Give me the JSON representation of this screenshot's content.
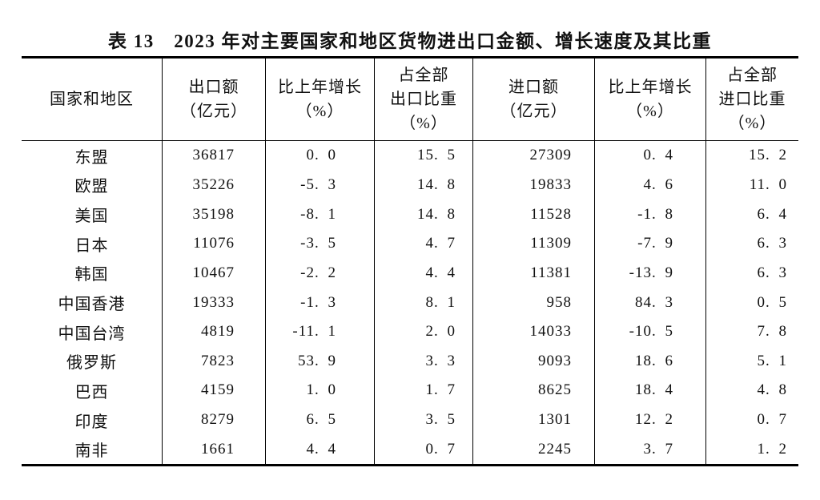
{
  "page": {
    "background_color": "#ffffff",
    "text_color": "#111111",
    "rule_color": "#000000"
  },
  "title": "表 13　2023 年对主要国家和地区货物进出口金额、增长速度及其比重",
  "table": {
    "header": [
      "国家和地区",
      "出口额\n（亿元）",
      "比上年增长\n（%）",
      "占全部\n出口比重\n（%）",
      "进口额\n（亿元）",
      "比上年增长\n（%）",
      "占全部\n进口比重\n（%）"
    ],
    "rows": [
      [
        "东盟",
        "36817",
        "0. 0",
        "15. 5",
        "27309",
        "0. 4",
        "15. 2"
      ],
      [
        "欧盟",
        "35226",
        "-5. 3",
        "14. 8",
        "19833",
        "4. 6",
        "11. 0"
      ],
      [
        "美国",
        "35198",
        "-8. 1",
        "14. 8",
        "11528",
        "-1. 8",
        "6. 4"
      ],
      [
        "日本",
        "11076",
        "-3. 5",
        "4. 7",
        "11309",
        "-7. 9",
        "6. 3"
      ],
      [
        "韩国",
        "10467",
        "-2. 2",
        "4. 4",
        "11381",
        "-13. 9",
        "6. 3"
      ],
      [
        "中国香港",
        "19333",
        "-1. 3",
        "8. 1",
        "958",
        "84. 3",
        "0. 5"
      ],
      [
        "中国台湾",
        "4819",
        "-11. 1",
        "2. 0",
        "14033",
        "-10. 5",
        "7. 8"
      ],
      [
        "俄罗斯",
        "7823",
        "53. 9",
        "3. 3",
        "9093",
        "18. 6",
        "5. 1"
      ],
      [
        "巴西",
        "4159",
        "1. 0",
        "1. 7",
        "8625",
        "18. 4",
        "4. 8"
      ],
      [
        "印度",
        "8279",
        "6. 5",
        "3. 5",
        "1301",
        "12. 2",
        "0. 7"
      ],
      [
        "南非",
        "1661",
        "4. 4",
        "0. 7",
        "2245",
        "3. 7",
        "1. 2"
      ]
    ]
  },
  "chart_data": {
    "type": "table",
    "title": "表13 2023年对主要国家和地区货物进出口金额、增长速度及其比重",
    "columns": [
      "国家和地区",
      "出口额（亿元）",
      "比上年增长（%）",
      "占全部出口比重（%）",
      "进口额（亿元）",
      "比上年增长（%）",
      "占全部进口比重（%）"
    ],
    "rows": [
      [
        "东盟",
        36817,
        0.0,
        15.5,
        27309,
        0.4,
        15.2
      ],
      [
        "欧盟",
        35226,
        -5.3,
        14.8,
        19833,
        4.6,
        11.0
      ],
      [
        "美国",
        35198,
        -8.1,
        14.8,
        11528,
        -1.8,
        6.4
      ],
      [
        "日本",
        11076,
        -3.5,
        4.7,
        11309,
        -7.9,
        6.3
      ],
      [
        "韩国",
        10467,
        -2.2,
        4.4,
        11381,
        -13.9,
        6.3
      ],
      [
        "中国香港",
        19333,
        -1.3,
        8.1,
        958,
        84.3,
        0.5
      ],
      [
        "中国台湾",
        4819,
        -11.1,
        2.0,
        14033,
        -10.5,
        7.8
      ],
      [
        "俄罗斯",
        7823,
        53.9,
        3.3,
        9093,
        18.6,
        5.1
      ],
      [
        "巴西",
        4159,
        1.0,
        1.7,
        8625,
        18.4,
        4.8
      ],
      [
        "印度",
        8279,
        6.5,
        3.5,
        1301,
        12.2,
        0.7
      ],
      [
        "南非",
        1661,
        4.4,
        0.7,
        2245,
        3.7,
        1.2
      ]
    ]
  }
}
